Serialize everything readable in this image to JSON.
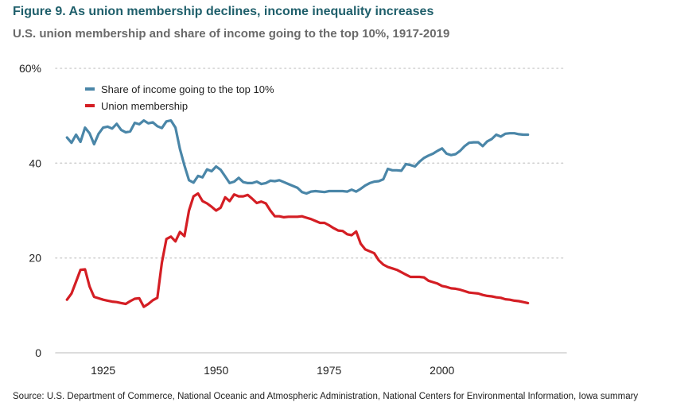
{
  "title": "Figure 9. As union membership declines, income inequality increases",
  "subtitle": "U.S. union membership and share of income going to the top 10%, 1917-2019",
  "source": "Source: U.S. Department of Commerce, National Oceanic and Atmospheric Administration, National Centers for Environmental Information, Iowa summary",
  "colors": {
    "top10": "#4a86a8",
    "union": "#d41e24",
    "grid": "#d0d0d0"
  },
  "chart_data": {
    "type": "line",
    "xlim": [
      1917,
      2019
    ],
    "ylim": [
      0,
      60
    ],
    "y_ticks": [
      {
        "value": 0,
        "label": "0"
      },
      {
        "value": 20,
        "label": "20"
      },
      {
        "value": 40,
        "label": "40"
      },
      {
        "value": 60,
        "label": "60%"
      }
    ],
    "x_ticks": [
      {
        "value": 1925,
        "label": "1925"
      },
      {
        "value": 1950,
        "label": "1950"
      },
      {
        "value": 1975,
        "label": "1975"
      },
      {
        "value": 2000,
        "label": "2000"
      }
    ],
    "grid": true,
    "legend_position": "top-left",
    "series": [
      {
        "name": "Share of income going to the top 10%",
        "color": "#4a86a8",
        "x": [
          1917,
          1918,
          1919,
          1920,
          1921,
          1922,
          1923,
          1924,
          1925,
          1926,
          1927,
          1928,
          1929,
          1930,
          1931,
          1932,
          1933,
          1934,
          1935,
          1936,
          1937,
          1938,
          1939,
          1940,
          1941,
          1942,
          1943,
          1944,
          1945,
          1946,
          1947,
          1948,
          1949,
          1950,
          1951,
          1952,
          1953,
          1954,
          1955,
          1956,
          1957,
          1958,
          1959,
          1960,
          1961,
          1962,
          1963,
          1964,
          1965,
          1966,
          1967,
          1968,
          1969,
          1970,
          1971,
          1972,
          1973,
          1974,
          1975,
          1976,
          1977,
          1978,
          1979,
          1980,
          1981,
          1982,
          1983,
          1984,
          1985,
          1986,
          1987,
          1988,
          1989,
          1990,
          1991,
          1992,
          1993,
          1994,
          1995,
          1996,
          1997,
          1998,
          1999,
          2000,
          2001,
          2002,
          2003,
          2004,
          2005,
          2006,
          2007,
          2008,
          2009,
          2010,
          2011,
          2012,
          2013,
          2014,
          2015,
          2016,
          2017,
          2018,
          2019
        ],
        "y": [
          45.4,
          44.3,
          46.0,
          44.5,
          47.5,
          46.3,
          44.0,
          46.2,
          47.5,
          47.7,
          47.3,
          48.3,
          47.0,
          46.5,
          46.7,
          48.5,
          48.2,
          49.0,
          48.4,
          48.6,
          47.8,
          47.4,
          48.8,
          49.0,
          47.5,
          43.0,
          39.5,
          36.4,
          35.9,
          37.3,
          37.0,
          38.7,
          38.3,
          39.3,
          38.6,
          37.2,
          35.8,
          36.1,
          36.9,
          36.0,
          35.8,
          35.8,
          36.1,
          35.6,
          35.8,
          36.3,
          36.2,
          36.4,
          36.0,
          35.6,
          35.2,
          34.8,
          33.9,
          33.6,
          34.0,
          34.1,
          34.0,
          33.9,
          34.1,
          34.1,
          34.1,
          34.1,
          34.0,
          34.4,
          34.0,
          34.6,
          35.3,
          35.8,
          36.1,
          36.2,
          36.6,
          38.8,
          38.5,
          38.5,
          38.4,
          39.8,
          39.6,
          39.3,
          40.3,
          41.1,
          41.6,
          42.0,
          42.6,
          43.1,
          42.0,
          41.7,
          41.9,
          42.6,
          43.6,
          44.3,
          44.4,
          44.4,
          43.6,
          44.6,
          45.1,
          46.0,
          45.6,
          46.2,
          46.3,
          46.3,
          46.1,
          46.0,
          46.0
        ]
      },
      {
        "name": "Union membership",
        "color": "#d41e24",
        "x": [
          1917,
          1918,
          1919,
          1920,
          1921,
          1922,
          1923,
          1924,
          1925,
          1926,
          1927,
          1928,
          1929,
          1930,
          1931,
          1932,
          1933,
          1934,
          1935,
          1936,
          1937,
          1938,
          1939,
          1940,
          1941,
          1942,
          1943,
          1944,
          1945,
          1946,
          1947,
          1948,
          1949,
          1950,
          1951,
          1952,
          1953,
          1954,
          1955,
          1956,
          1957,
          1958,
          1959,
          1960,
          1961,
          1962,
          1963,
          1964,
          1965,
          1966,
          1967,
          1968,
          1969,
          1970,
          1971,
          1972,
          1973,
          1974,
          1975,
          1976,
          1977,
          1978,
          1979,
          1980,
          1981,
          1982,
          1983,
          1984,
          1985,
          1986,
          1987,
          1988,
          1989,
          1990,
          1991,
          1992,
          1993,
          1994,
          1995,
          1996,
          1997,
          1998,
          1999,
          2000,
          2001,
          2002,
          2003,
          2004,
          2005,
          2006,
          2007,
          2008,
          2009,
          2010,
          2011,
          2012,
          2013,
          2014,
          2015,
          2016,
          2017,
          2018,
          2019
        ],
        "y": [
          11.2,
          12.5,
          15.0,
          17.5,
          17.6,
          14.0,
          11.8,
          11.5,
          11.2,
          11.0,
          10.8,
          10.7,
          10.5,
          10.3,
          10.9,
          11.4,
          11.5,
          9.7,
          10.3,
          11.1,
          11.6,
          19.0,
          24.0,
          24.5,
          23.5,
          25.5,
          24.6,
          30.0,
          33.0,
          33.6,
          32.0,
          31.5,
          30.8,
          30.0,
          30.6,
          32.8,
          32.0,
          33.4,
          33.0,
          33.0,
          33.3,
          32.5,
          31.6,
          31.9,
          31.5,
          30.0,
          28.8,
          28.8,
          28.6,
          28.7,
          28.7,
          28.7,
          28.8,
          28.5,
          28.2,
          27.8,
          27.4,
          27.4,
          26.9,
          26.3,
          25.8,
          25.7,
          25.0,
          24.8,
          25.6,
          23.0,
          21.8,
          21.4,
          21.0,
          19.5,
          18.6,
          18.1,
          17.8,
          17.5,
          17.0,
          16.5,
          16.0,
          16.0,
          16.0,
          15.9,
          15.2,
          14.9,
          14.6,
          14.1,
          13.9,
          13.6,
          13.5,
          13.3,
          13.0,
          12.7,
          12.6,
          12.5,
          12.2,
          12.0,
          11.9,
          11.7,
          11.6,
          11.3,
          11.2,
          11.0,
          10.9,
          10.7,
          10.5
        ]
      }
    ]
  }
}
